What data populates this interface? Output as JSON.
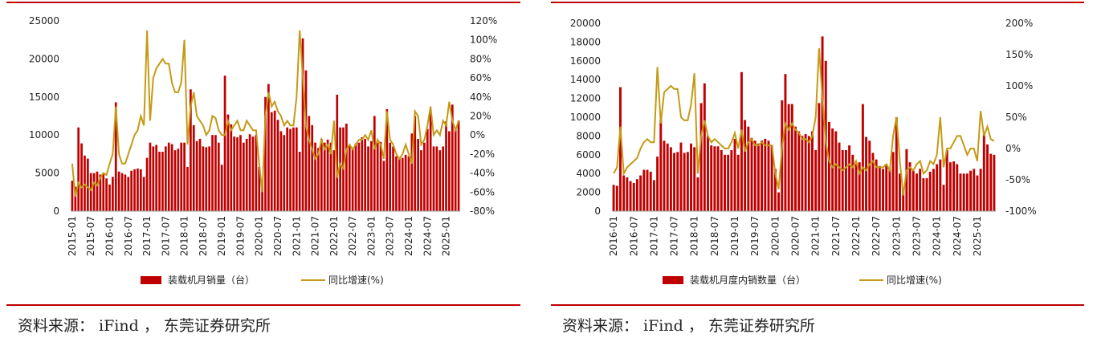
{
  "chart_data": [
    {
      "type": "bar-line",
      "source": "资料来源： iFind ， 东莞证券研究所",
      "categories": [
        "2015-01",
        null,
        null,
        null,
        null,
        null,
        "2015-07",
        null,
        null,
        null,
        null,
        null,
        "2016-01",
        null,
        null,
        null,
        null,
        null,
        "2016-07",
        null,
        null,
        null,
        null,
        null,
        "2017-01",
        null,
        null,
        null,
        null,
        null,
        "2017-07",
        null,
        null,
        null,
        null,
        null,
        "2018-01",
        null,
        null,
        null,
        null,
        null,
        "2018-07",
        null,
        null,
        null,
        null,
        null,
        "2019-01",
        null,
        null,
        null,
        null,
        null,
        "2019-07",
        null,
        null,
        null,
        null,
        null,
        "2020-01",
        null,
        null,
        null,
        null,
        null,
        "2020-07",
        null,
        null,
        null,
        null,
        null,
        "2021-01",
        null,
        null,
        null,
        null,
        null,
        "2021-07",
        null,
        null,
        null,
        null,
        null,
        "2022-01",
        null,
        null,
        null,
        null,
        null,
        "2022-07",
        null,
        null,
        null,
        null,
        null,
        "2023-01",
        null,
        null,
        null,
        null,
        null,
        "2023-07",
        null,
        null,
        null,
        null,
        null,
        "2024-01",
        null,
        null,
        null,
        null,
        null,
        "2024-07",
        null,
        null,
        null,
        null,
        null,
        "2025-01",
        null,
        null,
        null,
        null
      ],
      "series": [
        {
          "name": "装载机月销量（台）",
          "color": "#c00000",
          "kind": "bar",
          "values": [
            4000,
            3200,
            11000,
            8900,
            7300,
            6900,
            5000,
            5000,
            5200,
            4800,
            5000,
            4300,
            3500,
            4500,
            14300,
            5200,
            5000,
            4800,
            4500,
            5300,
            5500,
            5600,
            5500,
            4500,
            7000,
            9000,
            8500,
            8700,
            7800,
            7800,
            8500,
            9000,
            8800,
            8000,
            8200,
            9000,
            9000,
            5800,
            16000,
            11300,
            9200,
            9500,
            8500,
            8400,
            8500,
            10000,
            10000,
            9000,
            6100,
            17800,
            12700,
            11400,
            9800,
            9700,
            10000,
            9000,
            9500,
            10100,
            9800,
            10000,
            5800,
            3700,
            15000,
            16700,
            13000,
            13200,
            12000,
            10500,
            10000,
            11000,
            10800,
            11000,
            11000,
            7800,
            22700,
            18500,
            12500,
            11300,
            9000,
            8300,
            9500,
            9000,
            9400,
            9000,
            8000,
            15300,
            11000,
            11000,
            11500,
            8700,
            8300,
            8900,
            9000,
            9700,
            9500,
            8500,
            9200,
            12500,
            9000,
            9100,
            6600,
            13400,
            9000,
            8500,
            7200,
            7000,
            7000,
            7400,
            7200,
            10200,
            12500,
            9500,
            8000,
            9000,
            10800,
            13000,
            8500,
            8500,
            8000,
            8500,
            11800,
            10500,
            14000,
            10700,
            11900
          ]
        },
        {
          "name": "同比增速(%)",
          "color": "#c49a16",
          "kind": "line",
          "axis": "y2",
          "values": [
            -30,
            -65,
            -50,
            -55,
            -52,
            -55,
            -58,
            -50,
            -53,
            -45,
            -40,
            -42,
            -30,
            -20,
            30,
            -20,
            -30,
            -30,
            -20,
            -10,
            0,
            5,
            20,
            10,
            110,
            15,
            60,
            70,
            75,
            80,
            75,
            75,
            55,
            45,
            45,
            55,
            100,
            -10,
            30,
            45,
            20,
            15,
            10,
            0,
            5,
            20,
            18,
            5,
            0,
            0,
            15,
            5,
            10,
            15,
            5,
            5,
            15,
            10,
            5,
            5,
            -30,
            -60,
            20,
            45,
            30,
            35,
            25,
            20,
            10,
            15,
            10,
            10,
            40,
            110,
            60,
            10,
            -5,
            -15,
            -25,
            -20,
            -5,
            -15,
            -10,
            -20,
            15,
            -45,
            -30,
            -35,
            -15,
            -10,
            -15,
            -10,
            -5,
            -5,
            0,
            -5,
            5,
            -15,
            -5,
            -10,
            -25,
            25,
            -5,
            -10,
            -20,
            -25,
            -20,
            -10,
            -20,
            -30,
            25,
            20,
            -10,
            -5,
            10,
            30,
            0,
            5,
            0,
            15,
            10,
            35,
            15,
            5,
            15
          ]
        }
      ],
      "ylim": [
        0,
        25000
      ],
      "yticks": [
        0,
        5000,
        10000,
        15000,
        20000,
        25000
      ],
      "y2lim": [
        -80,
        120
      ],
      "y2ticks": [
        {
          "value": -80,
          "label": "-80%"
        },
        {
          "value": -60,
          "label": "-60%"
        },
        {
          "value": -40,
          "label": "-40%"
        },
        {
          "value": -20,
          "label": "-20%"
        },
        {
          "value": 0,
          "label": "0%"
        },
        {
          "value": 20,
          "label": "20%"
        },
        {
          "value": 40,
          "label": "40%"
        },
        {
          "value": 60,
          "label": "60%"
        },
        {
          "value": 80,
          "label": "80%"
        },
        {
          "value": 100,
          "label": "100%"
        },
        {
          "value": 120,
          "label": "120%"
        }
      ]
    },
    {
      "type": "bar-line",
      "source": "资料来源： iFind ， 东莞证券研究所",
      "categories": [
        "2016-01",
        null,
        null,
        null,
        null,
        null,
        "2016-07",
        null,
        null,
        null,
        null,
        null,
        "2017-01",
        null,
        null,
        null,
        null,
        null,
        "2017-07",
        null,
        null,
        null,
        null,
        null,
        "2018-01",
        null,
        null,
        null,
        null,
        null,
        "2018-07",
        null,
        null,
        null,
        null,
        null,
        "2019-01",
        null,
        null,
        null,
        null,
        null,
        "2019-07",
        null,
        null,
        null,
        null,
        null,
        "2020-01",
        null,
        null,
        null,
        null,
        null,
        "2020-07",
        null,
        null,
        null,
        null,
        null,
        "2021-01",
        null,
        null,
        null,
        null,
        null,
        "2021-07",
        null,
        null,
        null,
        null,
        null,
        "2022-01",
        null,
        null,
        null,
        null,
        null,
        "2022-07",
        null,
        null,
        null,
        null,
        null,
        "2023-01",
        null,
        null,
        null,
        null,
        null,
        "2023-07",
        null,
        null,
        null,
        null,
        null,
        "2024-01",
        null,
        null,
        null,
        null,
        null,
        "2024-07",
        null,
        null,
        null,
        null,
        null,
        "2025-01",
        null,
        null,
        null,
        null,
        null
      ],
      "series": [
        {
          "name": "装载机月度内销数量（台）",
          "color": "#c00000",
          "kind": "bar",
          "values": [
            2800,
            2700,
            13200,
            3800,
            3600,
            3200,
            3000,
            3400,
            3800,
            4400,
            4400,
            4200,
            3300,
            5800,
            9700,
            7500,
            7200,
            6800,
            6200,
            6300,
            7300,
            6200,
            6300,
            7200,
            6800,
            3600,
            11500,
            13600,
            8000,
            7000,
            6900,
            6900,
            6500,
            6000,
            6000,
            6500,
            7700,
            6000,
            14800,
            9700,
            9000,
            7800,
            7500,
            7200,
            7500,
            7700,
            7500,
            7000,
            4500,
            2000,
            11800,
            14600,
            11400,
            11400,
            9000,
            8500,
            8000,
            8200,
            8000,
            8500,
            6500,
            11500,
            18600,
            16000,
            9500,
            8800,
            8500,
            7300,
            6500,
            6500,
            7000,
            6000,
            5000,
            5200,
            11400,
            7900,
            7500,
            6200,
            5500,
            4800,
            4500,
            5000,
            4500,
            6300,
            10000,
            4000,
            2400,
            6600,
            5200,
            4300,
            4000,
            4500,
            3500,
            3500,
            4200,
            4500,
            5000,
            5500,
            2800,
            6500,
            5200,
            5300,
            5000,
            4000,
            4000,
            4000,
            4300,
            4500,
            3800,
            4500,
            8200,
            7100,
            6100,
            6000
          ]
        },
        {
          "name": "同比增速(%)",
          "color": "#c49a16",
          "kind": "line",
          "axis": "y2",
          "values": [
            -40,
            -30,
            35,
            -40,
            -30,
            -25,
            -20,
            -15,
            0,
            10,
            15,
            10,
            10,
            130,
            40,
            90,
            95,
            100,
            95,
            95,
            50,
            45,
            45,
            70,
            120,
            -40,
            20,
            45,
            20,
            10,
            15,
            10,
            5,
            0,
            0,
            10,
            25,
            0,
            30,
            -5,
            10,
            15,
            5,
            5,
            10,
            5,
            5,
            5,
            -40,
            -65,
            0,
            40,
            30,
            40,
            30,
            25,
            15,
            15,
            10,
            20,
            50,
            160,
            80,
            10,
            -20,
            -30,
            -25,
            -30,
            -35,
            -30,
            -25,
            -30,
            -20,
            -40,
            -30,
            -35,
            -25,
            -20,
            -30,
            -30,
            -30,
            -25,
            -35,
            20,
            50,
            -20,
            -75,
            -35,
            -30,
            -35,
            -25,
            -20,
            -40,
            -35,
            -20,
            -25,
            -10,
            50,
            -30,
            0,
            0,
            10,
            20,
            20,
            5,
            -10,
            0,
            0,
            -20,
            60,
            20,
            35,
            15,
            12
          ]
        }
      ],
      "ylim": [
        0,
        20000
      ],
      "yticks": [
        0,
        2000,
        4000,
        6000,
        8000,
        10000,
        12000,
        14000,
        16000,
        18000,
        20000
      ],
      "y2lim": [
        -100,
        200
      ],
      "y2ticks": [
        {
          "value": -100,
          "label": "-100%"
        },
        {
          "value": -50,
          "label": "-50%"
        },
        {
          "value": 0,
          "label": "0%"
        },
        {
          "value": 50,
          "label": "50%"
        },
        {
          "value": 100,
          "label": "100%"
        },
        {
          "value": 150,
          "label": "150%"
        },
        {
          "value": 200,
          "label": "200%"
        }
      ]
    }
  ]
}
